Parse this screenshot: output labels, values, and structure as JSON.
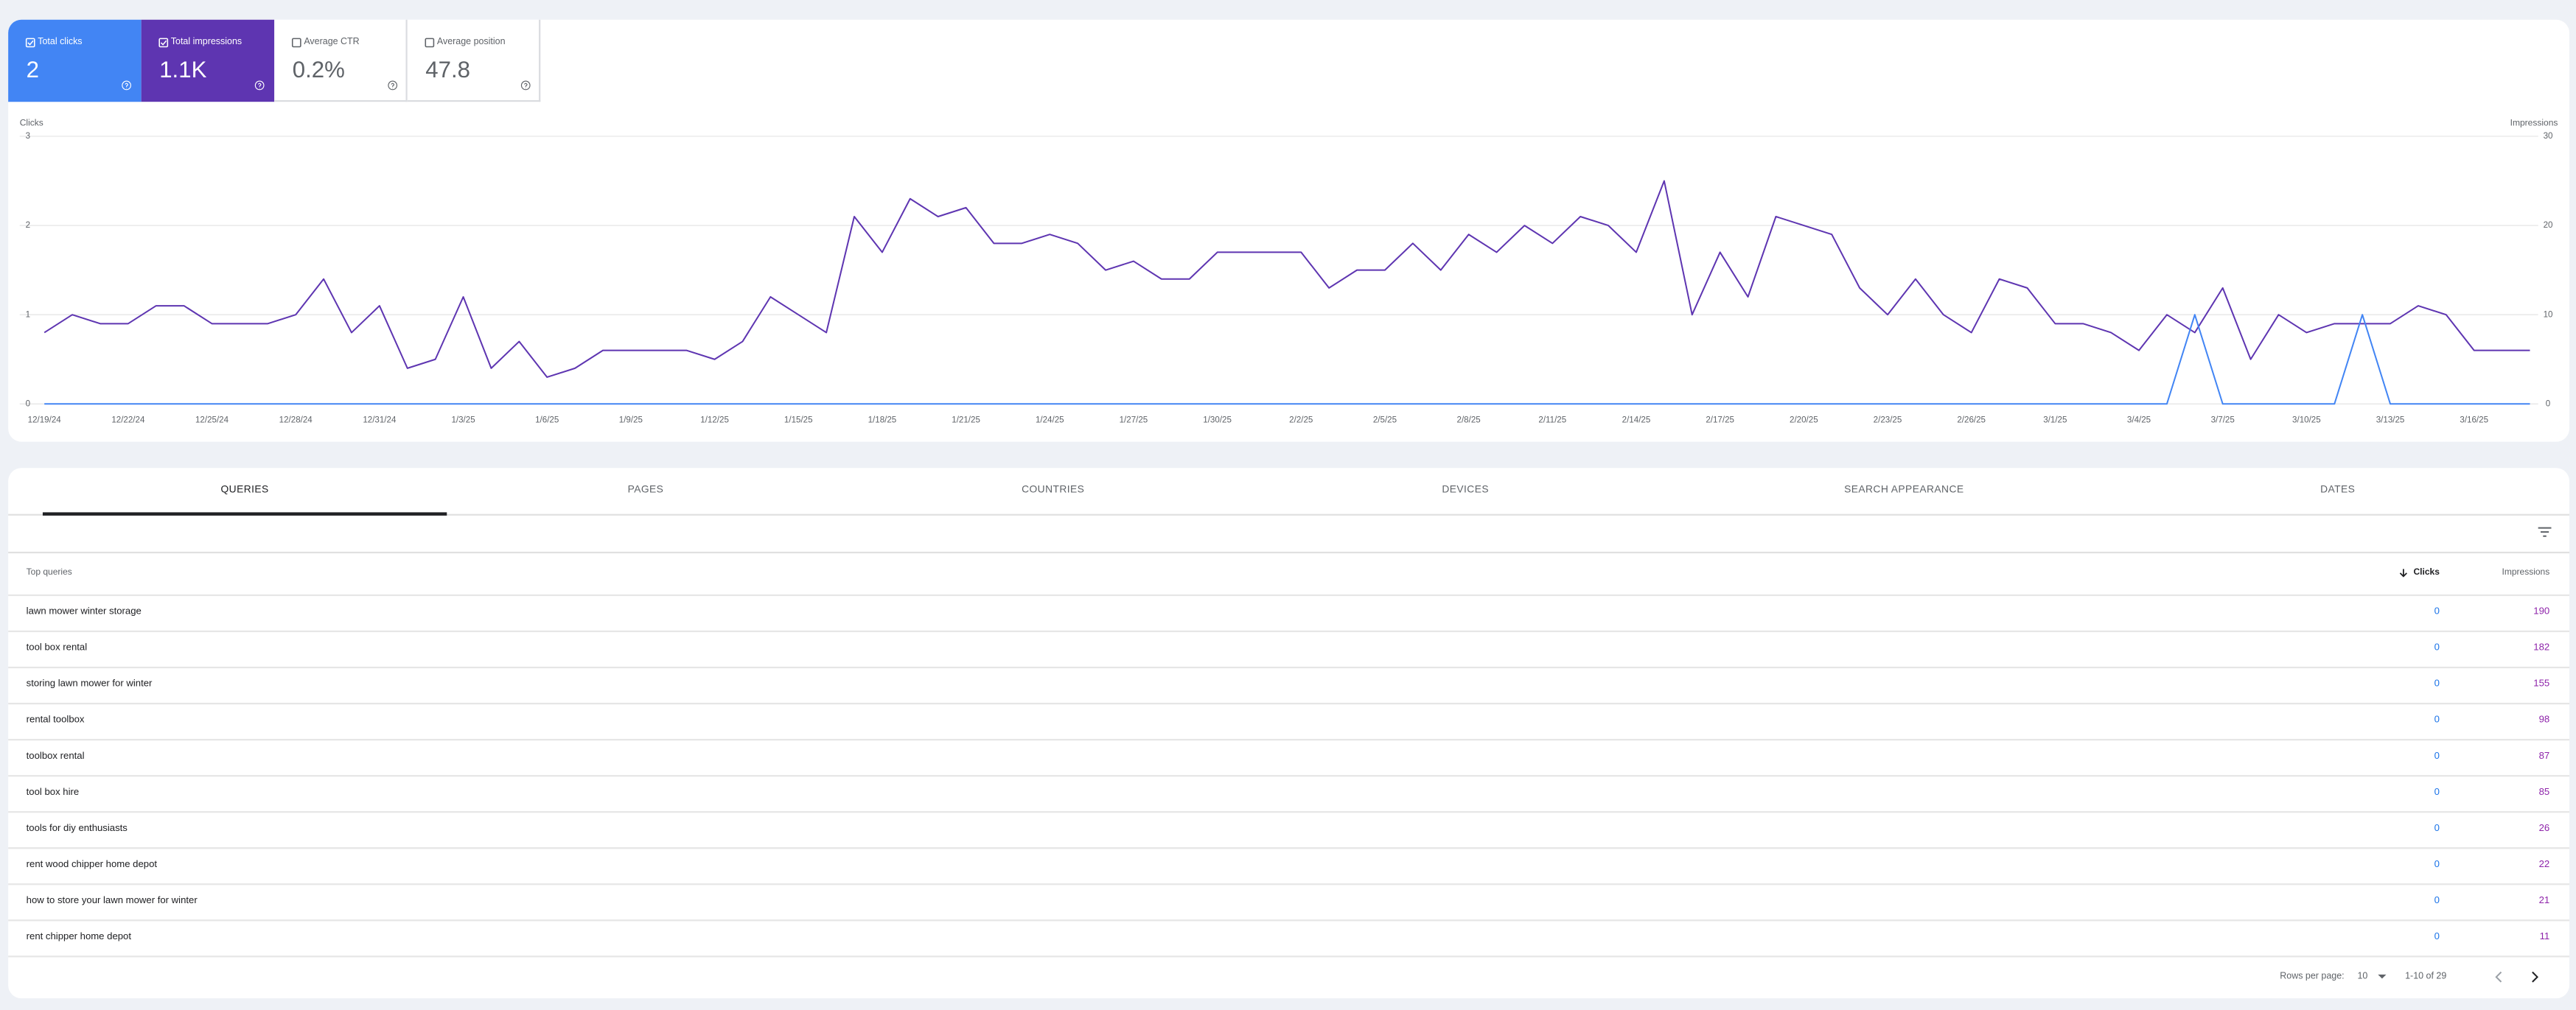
{
  "metrics": [
    {
      "label": "Total clicks",
      "value": "2",
      "checked": true,
      "color": "#4285f4"
    },
    {
      "label": "Total impressions",
      "value": "1.1K",
      "checked": true,
      "color": "#5e35b1"
    },
    {
      "label": "Average CTR",
      "value": "0.2%",
      "checked": false,
      "color": "#ffffff"
    },
    {
      "label": "Average position",
      "value": "47.8",
      "checked": false,
      "color": "#ffffff"
    }
  ],
  "chart_data": {
    "type": "line",
    "categories": [
      "12/19/24",
      null,
      null,
      "12/22/24",
      null,
      null,
      "12/25/24",
      null,
      null,
      "12/28/24",
      null,
      null,
      "12/31/24",
      null,
      null,
      "1/3/25",
      null,
      null,
      "1/6/25",
      null,
      null,
      "1/9/25",
      null,
      null,
      "1/12/25",
      null,
      null,
      "1/15/25",
      null,
      null,
      "1/18/25",
      null,
      null,
      "1/21/25",
      null,
      null,
      "1/24/25",
      null,
      null,
      "1/27/25",
      null,
      null,
      "1/30/25",
      null,
      null,
      "2/2/25",
      null,
      null,
      "2/5/25",
      null,
      null,
      "2/8/25",
      null,
      null,
      "2/11/25",
      null,
      null,
      "2/14/25",
      null,
      null,
      "2/17/25",
      null,
      null,
      "2/20/25",
      null,
      null,
      "2/23/25",
      null,
      null,
      "2/26/25",
      null,
      null,
      "3/1/25",
      null,
      null,
      "3/4/25",
      null,
      null,
      "3/7/25",
      null,
      null,
      "3/10/25",
      null,
      null,
      "3/13/25",
      null,
      null,
      "3/16/25",
      null,
      null
    ],
    "series": [
      {
        "name": "Clicks",
        "color": "#4285f4",
        "axis": "y",
        "values": [
          0,
          0,
          0,
          0,
          0,
          0,
          0,
          0,
          0,
          0,
          0,
          0,
          0,
          0,
          0,
          0,
          0,
          0,
          0,
          0,
          0,
          0,
          0,
          0,
          0,
          0,
          0,
          0,
          0,
          0,
          0,
          0,
          0,
          0,
          0,
          0,
          0,
          0,
          0,
          0,
          0,
          0,
          0,
          0,
          0,
          0,
          0,
          0,
          0,
          0,
          0,
          0,
          0,
          0,
          0,
          0,
          0,
          0,
          0,
          0,
          0,
          0,
          0,
          0,
          0,
          0,
          0,
          0,
          0,
          0,
          0,
          0,
          0,
          0,
          0,
          0,
          0,
          1,
          0,
          0,
          0,
          0,
          0,
          1,
          0,
          0,
          0,
          0,
          0,
          0
        ]
      },
      {
        "name": "Impressions",
        "color": "#5e35b1",
        "axis": "y2",
        "values": [
          8,
          10,
          9,
          9,
          11,
          11,
          9,
          9,
          9,
          10,
          14,
          8,
          11,
          4,
          5,
          12,
          4,
          7,
          3,
          4,
          6,
          6,
          6,
          6,
          5,
          7,
          12,
          10,
          8,
          21,
          17,
          23,
          21,
          22,
          18,
          18,
          19,
          18,
          15,
          16,
          14,
          14,
          17,
          17,
          17,
          17,
          13,
          15,
          15,
          18,
          15,
          19,
          17,
          20,
          18,
          21,
          20,
          17,
          25,
          10,
          17,
          12,
          21,
          20,
          19,
          13,
          10,
          14,
          10,
          8,
          14,
          13,
          9,
          9,
          8,
          6,
          10,
          8,
          13,
          5,
          10,
          8,
          9,
          9,
          9,
          11,
          10,
          6,
          6,
          6
        ]
      }
    ],
    "ylim": [
      0,
      3
    ],
    "yticks": [
      0,
      1,
      2,
      3
    ],
    "y2lim": [
      0,
      30
    ],
    "y2ticks": [
      0,
      10,
      20,
      30
    ],
    "grid": true
  },
  "tabs": {
    "items": [
      "QUERIES",
      "PAGES",
      "COUNTRIES",
      "DEVICES",
      "SEARCH APPEARANCE",
      "DATES"
    ],
    "active": 0
  },
  "table": {
    "columns": [
      "Top queries",
      "Clicks",
      "Impressions"
    ],
    "rows": [
      {
        "query": "lawn mower winter storage",
        "clicks": 0,
        "impressions": 190
      },
      {
        "query": "tool box rental",
        "clicks": 0,
        "impressions": 182
      },
      {
        "query": "storing lawn mower for winter",
        "clicks": 0,
        "impressions": 155
      },
      {
        "query": "rental toolbox",
        "clicks": 0,
        "impressions": 98
      },
      {
        "query": "toolbox rental",
        "clicks": 0,
        "impressions": 87
      },
      {
        "query": "tool box hire",
        "clicks": 0,
        "impressions": 85
      },
      {
        "query": "tools for diy enthusiasts",
        "clicks": 0,
        "impressions": 26
      },
      {
        "query": "rent wood chipper home depot",
        "clicks": 0,
        "impressions": 22
      },
      {
        "query": "how to store your lawn mower for winter",
        "clicks": 0,
        "impressions": 21
      },
      {
        "query": "rent chipper home depot",
        "clicks": 0,
        "impressions": 11
      }
    ]
  },
  "pagination": {
    "rows_per_page_label": "Rows per page:",
    "rows_per_page": 10,
    "range": "1-10 of 29"
  }
}
